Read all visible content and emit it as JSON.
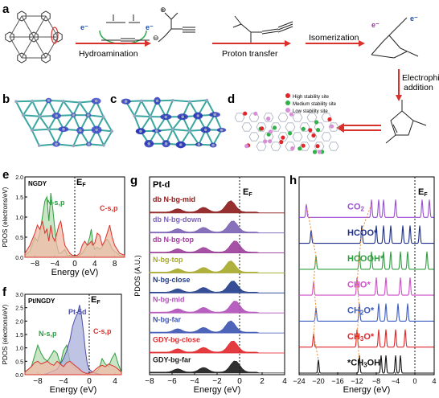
{
  "panels": {
    "a": {
      "label": "a",
      "steps": [
        "Hydroamination",
        "Proton transfer",
        "Isomerization",
        "Electrophilic addition"
      ],
      "charges": {
        "plus": "⊕",
        "minus": "⊖",
        "electron": "e⁻"
      }
    },
    "b": {
      "label": "b"
    },
    "c": {
      "label": "c"
    },
    "d": {
      "label": "d",
      "legend": [
        {
          "name": "High stability site",
          "color": "#e0262b"
        },
        {
          "name": "Medium stability site",
          "color": "#2fb24a"
        },
        {
          "name": "Low stability site",
          "color": "#d98fd8"
        }
      ]
    }
  },
  "chart_data": [
    {
      "panel": "e",
      "type": "area",
      "title": "NGDY",
      "xlabel": "Energy (eV)",
      "ylabel": "PDOS (electrons/eV)",
      "ef_label": "EF",
      "xlim": [
        -10,
        10
      ],
      "ylim": [
        0,
        2.0
      ],
      "xticks": [
        -8,
        -4,
        0,
        4,
        8
      ],
      "yticks": [
        0.0,
        0.5,
        1.0,
        1.5,
        2.0
      ],
      "ytick_labels": [
        "0.0",
        "0.5",
        "1.0",
        "1.5",
        "2.0"
      ],
      "series": [
        {
          "name": "N-s,p",
          "color": "#2e9d3e",
          "fill": "#b7dcb3",
          "x": [
            -10,
            -9,
            -8,
            -7.5,
            -7,
            -6.5,
            -6,
            -5.6,
            -5.2,
            -4.8,
            -4.4,
            -4,
            -3.6,
            -3.2,
            -2.8,
            -2.4,
            -2,
            -1.5,
            -1,
            -0.5,
            0,
            0.5,
            1,
            1.5,
            2,
            2.5,
            3,
            3.3,
            3.6,
            4,
            4.5,
            5,
            5.5,
            6,
            6.5,
            7,
            7.5,
            8,
            9,
            10
          ],
          "y": [
            0.05,
            0.15,
            0.5,
            0.4,
            0.6,
            1.0,
            1.4,
            1.5,
            0.9,
            1.6,
            1.2,
            0.7,
            0.3,
            0.1,
            0.1,
            0.15,
            0.2,
            0.05,
            0.05,
            0.02,
            0.02,
            0.02,
            0.05,
            0.1,
            0.2,
            0.3,
            0.5,
            0.7,
            0.4,
            0.2,
            0.25,
            0.2,
            0.25,
            0.4,
            0.45,
            0.35,
            0.2,
            0.15,
            0.05,
            0.02
          ]
        },
        {
          "name": "C-s,p",
          "color": "#d9312b",
          "fill": "#f2b9a6",
          "x": [
            -10,
            -9,
            -8,
            -7.5,
            -7,
            -6.5,
            -6,
            -5.6,
            -5.2,
            -4.8,
            -4.4,
            -4,
            -3.6,
            -3.2,
            -2.8,
            -2.4,
            -2,
            -1.5,
            -1,
            -0.5,
            0,
            0.5,
            1,
            1.5,
            2,
            2.5,
            3,
            3.3,
            3.6,
            4,
            4.5,
            5,
            5.5,
            6,
            6.5,
            7,
            7.5,
            8,
            9,
            10
          ],
          "y": [
            0.1,
            0.3,
            0.6,
            0.8,
            0.7,
            0.9,
            0.6,
            0.7,
            0.4,
            0.8,
            0.5,
            0.4,
            0.6,
            0.8,
            0.9,
            0.6,
            0.3,
            0.2,
            0.1,
            0.05,
            0.05,
            0.05,
            0.1,
            0.3,
            0.4,
            0.3,
            0.35,
            0.4,
            0.3,
            0.35,
            0.6,
            0.55,
            0.3,
            0.4,
            0.6,
            0.8,
            0.5,
            0.3,
            0.1,
            0.05
          ]
        }
      ]
    },
    {
      "panel": "f",
      "type": "area",
      "title": "Pt/NGDY",
      "xlabel": "Energy (eV)",
      "ylabel": "PDOS (electrons/eV)",
      "ef_label": "EF",
      "xlim": [
        -10,
        5
      ],
      "ylim": [
        0,
        3.0
      ],
      "xticks": [
        -8,
        -4,
        0,
        4
      ],
      "yticks": [
        0.0,
        0.5,
        1.0,
        1.5,
        2.0,
        2.5,
        3.0
      ],
      "ytick_labels": [
        "0.0",
        "0.5",
        "1.0",
        "1.5",
        "2.0",
        "2.5",
        "3.0"
      ],
      "series": [
        {
          "name": "N-s,p",
          "color": "#2e9d3e",
          "fill": "#b7dcb3",
          "x": [
            -10,
            -9,
            -8.5,
            -8,
            -7.5,
            -7,
            -6.5,
            -6,
            -5.5,
            -5,
            -4.5,
            -4,
            -3.5,
            -3,
            -2.5,
            -2,
            -1.5,
            -1,
            -0.5,
            0,
            0.5,
            1,
            1.5,
            2,
            2.5,
            3,
            3.5,
            4,
            4.5,
            5
          ],
          "y": [
            0.1,
            0.3,
            0.7,
            1.1,
            0.8,
            0.6,
            0.5,
            0.7,
            0.9,
            0.8,
            0.4,
            0.9,
            1.1,
            0.5,
            0.3,
            0.2,
            0.15,
            0.1,
            0.05,
            0.05,
            0.05,
            0.1,
            0.2,
            0.6,
            0.4,
            0.3,
            0.6,
            0.8,
            0.4,
            0.1
          ]
        },
        {
          "name": "Pt-5d",
          "color": "#4a4fa8",
          "fill": "#aab0dc",
          "x": [
            -10,
            -7,
            -6,
            -5,
            -4.5,
            -4,
            -3.5,
            -3,
            -2.6,
            -2.2,
            -1.8,
            -1.5,
            -1.2,
            -0.9,
            -0.6,
            -0.3,
            0,
            0.5,
            1,
            2,
            5
          ],
          "y": [
            0,
            0,
            0.1,
            0.2,
            0.4,
            0.6,
            0.9,
            1.3,
            1.8,
            2.1,
            2.3,
            2.6,
            2.2,
            1.6,
            0.9,
            0.4,
            0.2,
            0.1,
            0.05,
            0,
            0
          ]
        },
        {
          "name": "C-s,p",
          "color": "#d9312b",
          "fill": "#f2b9a6",
          "x": [
            -10,
            -9,
            -8.5,
            -8,
            -7.5,
            -7,
            -6.5,
            -6,
            -5.5,
            -5,
            -4.5,
            -4,
            -3.5,
            -3,
            -2.5,
            -2,
            -1.5,
            -1,
            -0.5,
            0,
            0.5,
            1,
            1.5,
            2,
            2.5,
            3,
            3.5,
            4,
            4.5,
            5
          ],
          "y": [
            0.1,
            0.3,
            0.45,
            0.5,
            0.4,
            0.45,
            0.5,
            0.4,
            0.35,
            0.5,
            0.4,
            0.3,
            0.45,
            0.5,
            0.4,
            0.3,
            0.2,
            0.1,
            0.05,
            0.05,
            0.1,
            0.2,
            0.3,
            0.35,
            0.3,
            0.4,
            0.35,
            0.3,
            0.2,
            0.1
          ]
        }
      ]
    },
    {
      "panel": "g",
      "type": "area",
      "title": "Pt-d",
      "xlabel": "Energy (eV)",
      "ylabel": "PDOS (A.U.)",
      "ef_label": "EF",
      "xlim": [
        -8,
        4
      ],
      "xticks": [
        -8,
        -6,
        -4,
        -2,
        0,
        2,
        4
      ],
      "series": [
        {
          "name": "db N-bg-mid",
          "color": "#8b1a1a"
        },
        {
          "name": "db N-bg-down",
          "color": "#7b62b4"
        },
        {
          "name": "db N-bg-top",
          "color": "#9b3f9a"
        },
        {
          "name": "N-bg-top",
          "color": "#a6a82a"
        },
        {
          "name": "N-bg-close",
          "color": "#1f3b8a"
        },
        {
          "name": "N-bg-mid",
          "color": "#b04fb8"
        },
        {
          "name": "N-bg-far",
          "color": "#3b53b0"
        },
        {
          "name": "GDY-bg-close",
          "color": "#e0262b"
        },
        {
          "name": "GDY-bg-far",
          "color": "#1a1a1a"
        }
      ]
    },
    {
      "panel": "h",
      "type": "line",
      "xlabel": "Energy (eV)",
      "ylabel": "",
      "ef_label": "EF",
      "xlim": [
        -24,
        4
      ],
      "xticks": [
        -24,
        -20,
        -16,
        -12,
        -8,
        -4,
        0,
        4
      ],
      "series": [
        {
          "name": "CO2",
          "color": "#9b4fd0"
        },
        {
          "name": "HCOO*",
          "color": "#1f2f8a"
        },
        {
          "name": "HCOOH*",
          "color": "#2e9d3e"
        },
        {
          "name": "CHO*",
          "color": "#cf4fc8"
        },
        {
          "name": "CH2O*",
          "color": "#3b5bc0"
        },
        {
          "name": "CH3O*",
          "color": "#e0262b"
        },
        {
          "name": "*CH3OH",
          "color": "#111111"
        }
      ]
    }
  ]
}
